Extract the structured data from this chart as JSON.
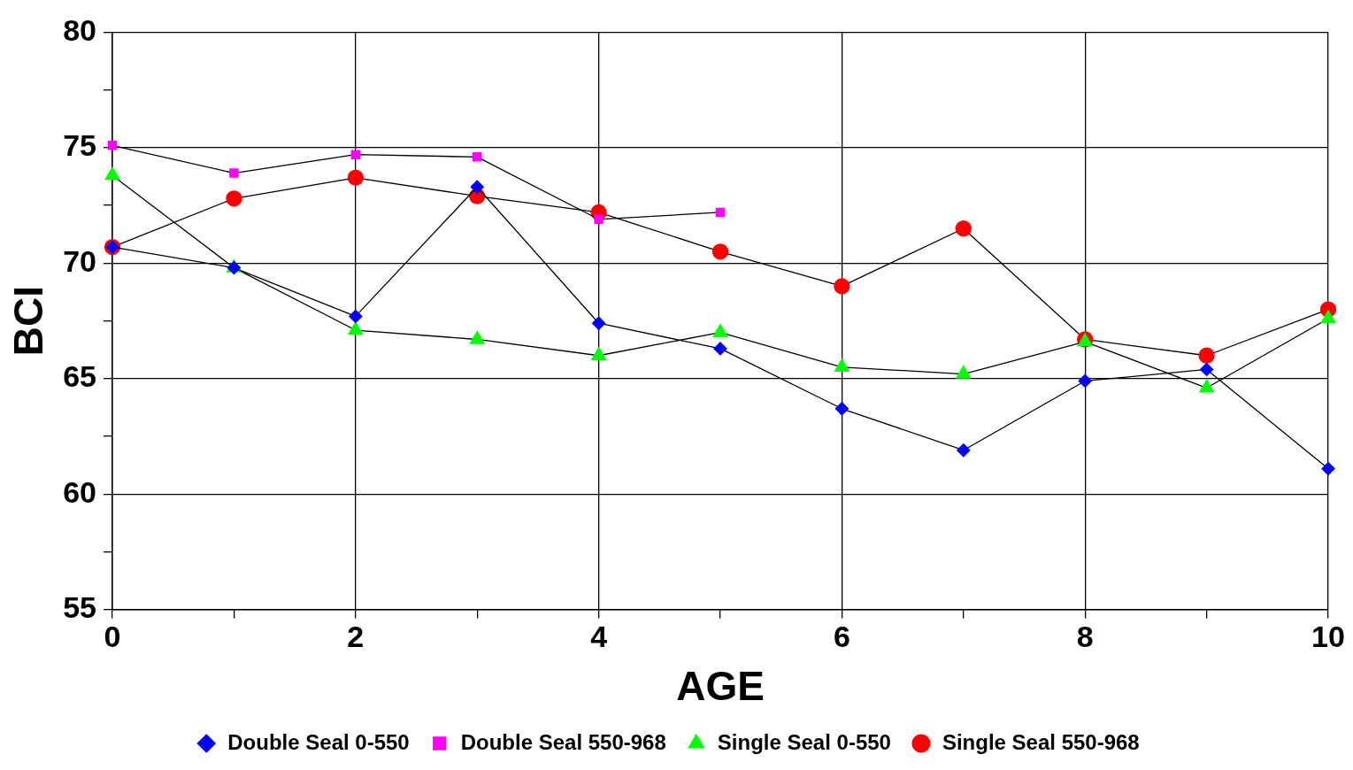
{
  "chart_data": {
    "type": "line",
    "xlabel": "AGE",
    "ylabel": "BCI",
    "x": [
      0,
      1,
      2,
      3,
      4,
      5,
      6,
      7,
      8,
      9,
      10
    ],
    "xlim": [
      0,
      10
    ],
    "xticks": [
      0,
      {
        "value": 1,
        "label": null
      },
      2,
      {
        "value": 3,
        "label": null
      },
      4,
      {
        "value": 5,
        "label": null
      },
      6,
      {
        "value": 7,
        "label": null
      },
      8,
      {
        "value": 9,
        "label": null
      },
      10
    ],
    "ylim": [
      55,
      80
    ],
    "yticks": [
      55,
      {
        "value": 57.5,
        "label": null
      },
      60,
      {
        "value": 62.5,
        "label": null
      },
      65,
      {
        "value": 67.5,
        "label": null
      },
      70,
      {
        "value": 72.5,
        "label": null
      },
      75,
      {
        "value": 77.5,
        "label": null
      },
      80
    ],
    "grid": true,
    "legend": "bottom",
    "line_style": "solid",
    "series": [
      {
        "name": "Double Seal 0-550",
        "color": "#0000ff",
        "marker": "diamond",
        "values": [
          70.7,
          69.8,
          67.7,
          73.3,
          67.4,
          66.3,
          63.7,
          61.9,
          64.9,
          65.4,
          61.1
        ]
      },
      {
        "name": "Double Seal 550-968",
        "color": "#ff00ff",
        "marker": "square",
        "values": [
          75.1,
          73.9,
          74.7,
          74.6,
          71.9,
          72.2,
          null,
          null,
          null,
          null,
          null
        ]
      },
      {
        "name": "Single Seal 0-550",
        "color": "#00ff00",
        "marker": "triangle",
        "values": [
          73.8,
          69.8,
          67.1,
          66.7,
          66.0,
          67.0,
          65.5,
          65.2,
          66.6,
          64.6,
          67.6
        ]
      },
      {
        "name": "Single Seal 550-968",
        "color": "#ff0000",
        "marker": "circle",
        "values": [
          70.7,
          72.8,
          73.7,
          72.9,
          72.2,
          70.5,
          69.0,
          71.5,
          66.7,
          66.0,
          68.0
        ]
      }
    ]
  }
}
